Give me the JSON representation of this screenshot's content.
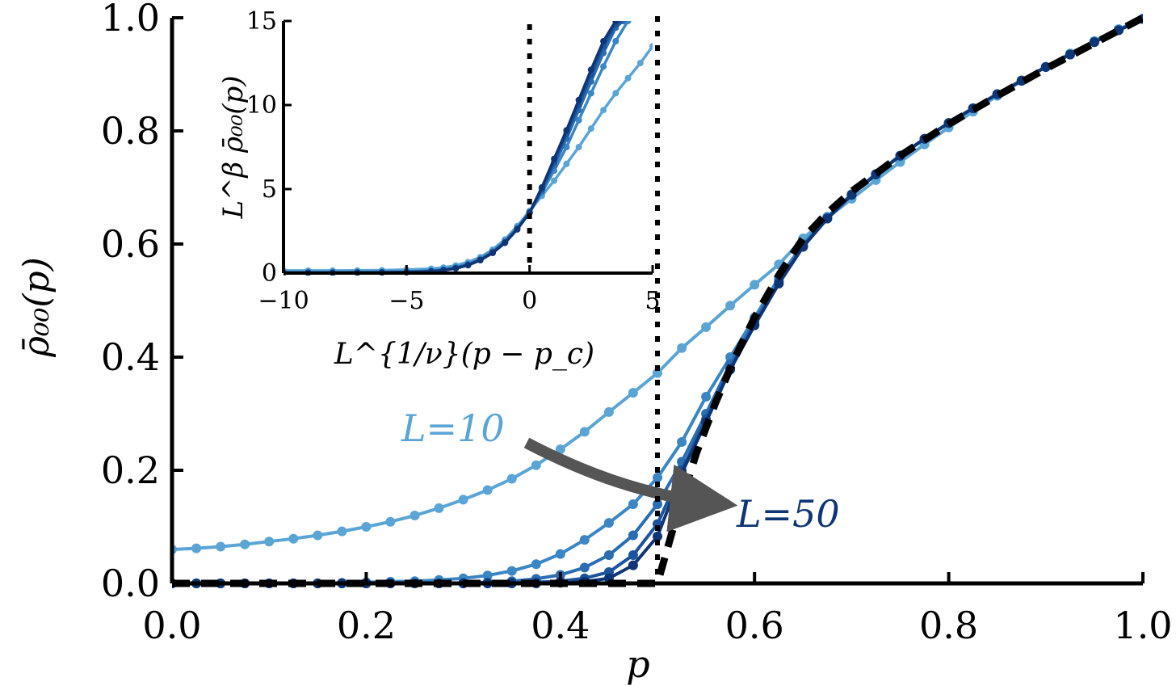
{
  "chart_data": [
    {
      "type": "line",
      "role": "main",
      "xlabel": "p",
      "ylabel": "ρ̄₀₀(p)",
      "xlim": [
        0,
        1
      ],
      "ylim": [
        0,
        1
      ],
      "xticks": [
        0.0,
        0.2,
        0.4,
        0.6,
        0.8,
        1.0
      ],
      "yticks": [
        0.0,
        0.2,
        0.4,
        0.6,
        0.8,
        1.0
      ],
      "xtick_labels": [
        "0.0",
        "0.2",
        "0.4",
        "0.6",
        "0.8",
        "1.0"
      ],
      "ytick_labels": [
        "0.0",
        "0.2",
        "0.4",
        "0.6",
        "0.8",
        "1.0"
      ],
      "grid": false,
      "legend": "none",
      "vline_x": 0.5,
      "annotations": [
        {
          "id": "l10",
          "text": "L=10",
          "color": "#5aa5d6"
        },
        {
          "id": "l50",
          "text": "L=50",
          "color": "#0e3575"
        }
      ],
      "arrow_color": "#555555",
      "limit_curve_color": "#000000",
      "series": [
        {
          "L": 10,
          "color": "#5aa5d6",
          "x": [
            0.0,
            0.025,
            0.05,
            0.075,
            0.1,
            0.125,
            0.15,
            0.175,
            0.2,
            0.225,
            0.25,
            0.275,
            0.3,
            0.325,
            0.35,
            0.375,
            0.4,
            0.425,
            0.45,
            0.475,
            0.5,
            0.525,
            0.55,
            0.575,
            0.6,
            0.625,
            0.65,
            0.675,
            0.7,
            0.725,
            0.75,
            0.775,
            0.8,
            0.825,
            0.85,
            0.875,
            0.9,
            0.925,
            0.95,
            0.975,
            1.0
          ],
          "y": [
            0.06,
            0.062,
            0.065,
            0.069,
            0.074,
            0.079,
            0.085,
            0.092,
            0.1,
            0.109,
            0.12,
            0.133,
            0.148,
            0.165,
            0.185,
            0.209,
            0.237,
            0.268,
            0.303,
            0.337,
            0.372,
            0.416,
            0.453,
            0.491,
            0.528,
            0.564,
            0.61,
            0.646,
            0.68,
            0.713,
            0.745,
            0.776,
            0.806,
            0.834,
            0.862,
            0.888,
            0.913,
            0.937,
            0.959,
            0.98,
            0.998
          ]
        },
        {
          "L": 20,
          "color": "#3b86c4",
          "x": [
            0.0,
            0.025,
            0.05,
            0.075,
            0.1,
            0.125,
            0.15,
            0.175,
            0.2,
            0.225,
            0.25,
            0.275,
            0.3,
            0.325,
            0.35,
            0.375,
            0.4,
            0.425,
            0.45,
            0.475,
            0.5,
            0.525,
            0.55,
            0.575,
            0.6,
            0.625,
            0.65,
            0.675,
            0.7,
            0.725,
            0.75,
            0.775,
            0.8,
            0.825,
            0.85,
            0.875,
            0.9,
            0.925,
            0.95,
            0.975,
            1.0
          ],
          "y": [
            0.0,
            0.0,
            0.0,
            0.0,
            0.0,
            0.0,
            0.0,
            0.001,
            0.002,
            0.003,
            0.004,
            0.006,
            0.009,
            0.014,
            0.022,
            0.034,
            0.052,
            0.077,
            0.107,
            0.14,
            0.187,
            0.25,
            0.33,
            0.4,
            0.47,
            0.54,
            0.6,
            0.648,
            0.688,
            0.724,
            0.756,
            0.786,
            0.814,
            0.84,
            0.865,
            0.889,
            0.913,
            0.935,
            0.957,
            0.978,
            0.998
          ]
        },
        {
          "L": 30,
          "color": "#2a6db3",
          "x": [
            0.0,
            0.025,
            0.05,
            0.075,
            0.1,
            0.125,
            0.15,
            0.175,
            0.2,
            0.225,
            0.25,
            0.275,
            0.3,
            0.325,
            0.35,
            0.375,
            0.4,
            0.425,
            0.45,
            0.475,
            0.5,
            0.525,
            0.55,
            0.575,
            0.6,
            0.625,
            0.65,
            0.675,
            0.7,
            0.725,
            0.75,
            0.775,
            0.8,
            0.825,
            0.85,
            0.875,
            0.9,
            0.925,
            0.95,
            0.975,
            1.0
          ],
          "y": [
            0.0,
            0.0,
            0.0,
            0.0,
            0.0,
            0.0,
            0.0,
            0.0,
            0.0,
            0.0,
            0.0,
            0.0,
            0.001,
            0.002,
            0.004,
            0.008,
            0.015,
            0.028,
            0.05,
            0.085,
            0.14,
            0.215,
            0.3,
            0.388,
            0.463,
            0.535,
            0.597,
            0.646,
            0.687,
            0.723,
            0.756,
            0.786,
            0.814,
            0.84,
            0.865,
            0.889,
            0.913,
            0.935,
            0.957,
            0.978,
            0.998
          ]
        },
        {
          "L": 40,
          "color": "#1b539e",
          "x": [
            0.0,
            0.025,
            0.05,
            0.075,
            0.1,
            0.125,
            0.15,
            0.175,
            0.2,
            0.225,
            0.25,
            0.275,
            0.3,
            0.325,
            0.35,
            0.375,
            0.4,
            0.425,
            0.45,
            0.475,
            0.5,
            0.525,
            0.55,
            0.575,
            0.6,
            0.625,
            0.65,
            0.675,
            0.7,
            0.725,
            0.75,
            0.775,
            0.8,
            0.825,
            0.85,
            0.875,
            0.9,
            0.925,
            0.95,
            0.975,
            1.0
          ],
          "y": [
            0.0,
            0.0,
            0.0,
            0.0,
            0.0,
            0.0,
            0.0,
            0.0,
            0.0,
            0.0,
            0.0,
            0.0,
            0.0,
            0.0,
            0.001,
            0.002,
            0.004,
            0.009,
            0.02,
            0.05,
            0.105,
            0.2,
            0.29,
            0.38,
            0.458,
            0.532,
            0.596,
            0.645,
            0.687,
            0.723,
            0.756,
            0.786,
            0.814,
            0.84,
            0.865,
            0.889,
            0.913,
            0.935,
            0.957,
            0.978,
            0.998
          ]
        },
        {
          "L": 50,
          "color": "#0e3575",
          "x": [
            0.0,
            0.025,
            0.05,
            0.075,
            0.1,
            0.125,
            0.15,
            0.175,
            0.2,
            0.225,
            0.25,
            0.275,
            0.3,
            0.325,
            0.35,
            0.375,
            0.4,
            0.425,
            0.45,
            0.475,
            0.5,
            0.525,
            0.55,
            0.575,
            0.6,
            0.625,
            0.65,
            0.675,
            0.7,
            0.725,
            0.75,
            0.775,
            0.8,
            0.825,
            0.85,
            0.875,
            0.9,
            0.925,
            0.95,
            0.975,
            1.0
          ],
          "y": [
            0.0,
            0.0,
            0.0,
            0.0,
            0.0,
            0.0,
            0.0,
            0.0,
            0.0,
            0.0,
            0.0,
            0.0,
            0.0,
            0.0,
            0.0,
            0.0,
            0.001,
            0.003,
            0.009,
            0.032,
            0.083,
            0.195,
            0.285,
            0.378,
            0.456,
            0.53,
            0.595,
            0.645,
            0.687,
            0.723,
            0.756,
            0.786,
            0.814,
            0.84,
            0.865,
            0.889,
            0.913,
            0.935,
            0.957,
            0.978,
            0.998
          ]
        }
      ],
      "limit_curve": {
        "x": [
          0.0,
          0.45,
          0.5,
          0.52,
          0.54,
          0.56,
          0.58,
          0.6,
          0.625,
          0.65,
          0.675,
          0.7,
          0.75,
          0.8,
          0.85,
          0.9,
          0.95,
          1.0
        ],
        "y": [
          0.0,
          0.0,
          0.0,
          0.12,
          0.23,
          0.32,
          0.4,
          0.47,
          0.545,
          0.61,
          0.655,
          0.693,
          0.756,
          0.812,
          0.862,
          0.91,
          0.955,
          1.0
        ]
      }
    },
    {
      "type": "line",
      "role": "inset",
      "xlabel": "L^{1/ν}(p − p_c)",
      "ylabel": "L^β ρ̄₀₀(p)",
      "xlim": [
        -10,
        5
      ],
      "ylim": [
        0,
        15
      ],
      "xticks": [
        -10,
        -5,
        0,
        5
      ],
      "yticks": [
        0,
        5,
        10,
        15
      ],
      "xtick_labels": [
        "−10",
        "−5",
        "0",
        "5"
      ],
      "ytick_labels": [
        "0",
        "5",
        "10",
        "15"
      ],
      "vlines_x": [
        0,
        5.3
      ],
      "series": [
        {
          "L": 10,
          "color": "#5aa5d6",
          "x": [
            -10,
            -9,
            -8,
            -7,
            -6,
            -5,
            -4,
            -3.5,
            -3,
            -2.5,
            -2,
            -1.5,
            -1,
            -0.5,
            0,
            0.5,
            1,
            1.5,
            2,
            2.5,
            3,
            3.5,
            4,
            4.5,
            5
          ],
          "y": [
            0.15,
            0.15,
            0.15,
            0.16,
            0.17,
            0.2,
            0.26,
            0.33,
            0.45,
            0.65,
            0.95,
            1.4,
            2.0,
            2.8,
            3.7,
            4.6,
            5.5,
            6.5,
            7.5,
            8.6,
            9.7,
            10.7,
            11.6,
            12.5,
            13.5
          ]
        },
        {
          "L": 20,
          "color": "#3b86c4",
          "x": [
            -10,
            -9,
            -8,
            -7,
            -6,
            -5,
            -4,
            -3.5,
            -3,
            -2.5,
            -2,
            -1.5,
            -1,
            -0.5,
            0,
            0.5,
            1,
            1.5,
            2,
            2.5,
            3,
            3.5,
            4
          ],
          "y": [
            0.05,
            0.05,
            0.05,
            0.06,
            0.07,
            0.09,
            0.15,
            0.22,
            0.35,
            0.55,
            0.85,
            1.3,
            1.9,
            2.7,
            3.6,
            4.8,
            6.1,
            7.5,
            9.1,
            10.7,
            12.3,
            13.8,
            15.0
          ]
        },
        {
          "L": 30,
          "color": "#2a6db3",
          "x": [
            -10,
            -9,
            -8,
            -7,
            -6,
            -5,
            -4,
            -3.5,
            -3,
            -2.5,
            -2,
            -1.5,
            -1,
            -0.5,
            0,
            0.5,
            1,
            1.5,
            2,
            2.5,
            3,
            3.5,
            3.8
          ],
          "y": [
            0.03,
            0.03,
            0.03,
            0.04,
            0.05,
            0.07,
            0.12,
            0.19,
            0.31,
            0.5,
            0.8,
            1.25,
            1.85,
            2.65,
            3.6,
            4.9,
            6.4,
            8.0,
            9.7,
            11.4,
            13.1,
            14.6,
            15.0
          ]
        },
        {
          "L": 40,
          "color": "#1b539e",
          "x": [
            -10,
            -9,
            -8,
            -7,
            -6,
            -5,
            -4,
            -3.5,
            -3,
            -2.5,
            -2,
            -1.5,
            -1,
            -0.5,
            0,
            0.5,
            1,
            1.5,
            2,
            2.5,
            3,
            3.5,
            3.65
          ],
          "y": [
            0.02,
            0.02,
            0.02,
            0.03,
            0.04,
            0.06,
            0.1,
            0.17,
            0.29,
            0.48,
            0.78,
            1.22,
            1.82,
            2.62,
            3.6,
            5.0,
            6.6,
            8.3,
            10.0,
            11.8,
            13.5,
            14.8,
            15.0
          ]
        },
        {
          "L": 50,
          "color": "#0e3575",
          "x": [
            -10,
            -9,
            -8,
            -7,
            -6,
            -5,
            -4,
            -3.5,
            -3,
            -2.5,
            -2,
            -1.5,
            -1,
            -0.5,
            0,
            0.5,
            1,
            1.5,
            2,
            2.5,
            3,
            3.5
          ],
          "y": [
            0.02,
            0.02,
            0.02,
            0.03,
            0.04,
            0.05,
            0.09,
            0.16,
            0.28,
            0.47,
            0.77,
            1.2,
            1.8,
            2.6,
            3.6,
            5.1,
            6.8,
            8.5,
            10.3,
            12.1,
            13.8,
            15.0
          ]
        }
      ]
    }
  ]
}
